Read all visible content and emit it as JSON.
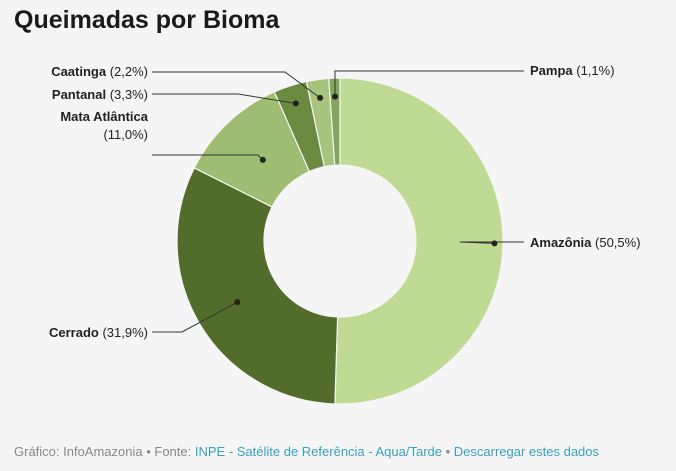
{
  "chart_data": {
    "type": "pie",
    "donut": true,
    "title": "Queimadas por Bioma",
    "slices": [
      {
        "name": "Amazônia",
        "value": 50.5,
        "label": "(50,5%)",
        "color": "#bfdb93"
      },
      {
        "name": "Cerrado",
        "value": 31.9,
        "label": "(31,9%)",
        "color": "#526d2b"
      },
      {
        "name": "Mata Atlântica",
        "value": 11.0,
        "label": "(11,0%)",
        "color": "#9ebd72"
      },
      {
        "name": "Pantanal",
        "value": 3.3,
        "label": "(3,3%)",
        "color": "#6a8a3f"
      },
      {
        "name": "Caatinga",
        "value": 2.2,
        "label": "(2,2%)",
        "color": "#a7c47e"
      },
      {
        "name": "Pampa",
        "value": 1.1,
        "label": "(1,1%)",
        "color": "#86a55a"
      }
    ]
  },
  "footer": {
    "credit": "Gráfico: InfoAmazonia • Fonte: ",
    "source_link": "INPE - Satélite de Referência - Aqua/Tarde",
    "separator": " • ",
    "download_link": "Descarregar estes dados"
  }
}
